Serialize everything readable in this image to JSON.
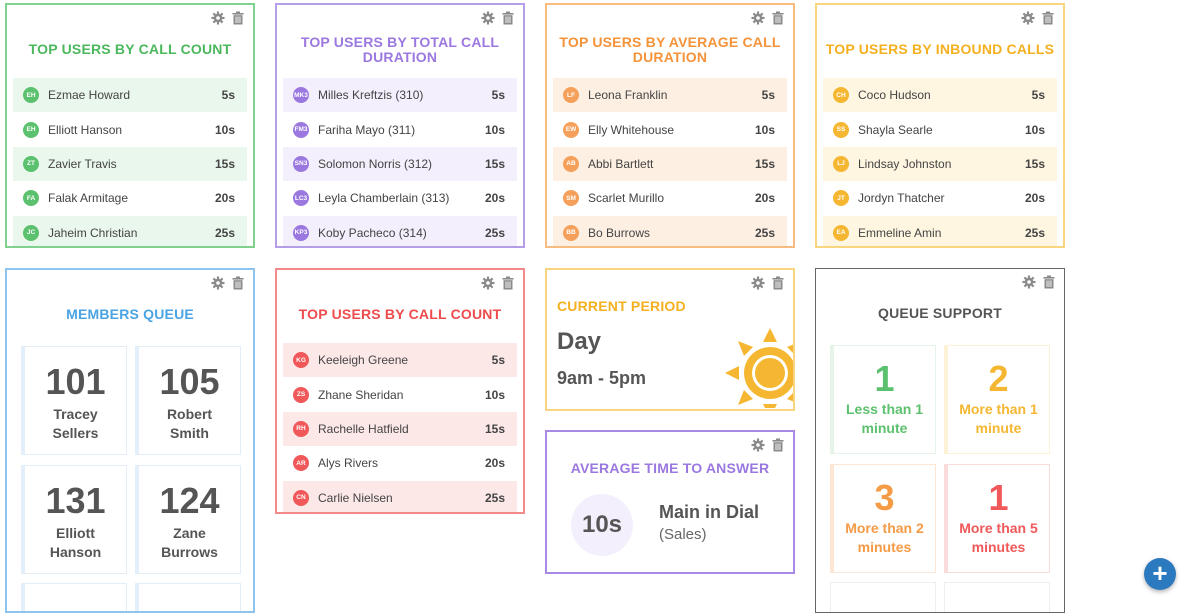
{
  "widgets": {
    "call_count": {
      "title": "TOP USERS BY CALL COUNT",
      "rows": [
        {
          "initials": "EH",
          "name": "Ezmae Howard",
          "duration": "5s"
        },
        {
          "initials": "EH",
          "name": "Elliott Hanson",
          "duration": "10s"
        },
        {
          "initials": "ZT",
          "name": "Zavier Travis",
          "duration": "15s"
        },
        {
          "initials": "FA",
          "name": "Falak Armitage",
          "duration": "20s"
        },
        {
          "initials": "JC",
          "name": "Jaheim Christian",
          "duration": "25s"
        }
      ]
    },
    "total_duration": {
      "title_line1": "TOP USERS BY TOTAL CALL",
      "title_line2": "DURATION",
      "rows": [
        {
          "initials": "MK3",
          "name": "Milles Kreftzis (310)",
          "duration": "5s"
        },
        {
          "initials": "FM3",
          "name": "Fariha Mayo (311)",
          "duration": "10s"
        },
        {
          "initials": "SN3",
          "name": "Solomon Norris (312)",
          "duration": "15s"
        },
        {
          "initials": "LC3",
          "name": "Leyla Chamberlain (313)",
          "duration": "20s"
        },
        {
          "initials": "KP3",
          "name": "Koby Pacheco (314)",
          "duration": "25s"
        }
      ]
    },
    "avg_duration": {
      "title_line1": "TOP USERS BY AVERAGE CALL",
      "title_line2": "DURATION",
      "rows": [
        {
          "initials": "LF",
          "name": "Leona Franklin",
          "duration": "5s"
        },
        {
          "initials": "EW",
          "name": "Elly Whitehouse",
          "duration": "10s"
        },
        {
          "initials": "AB",
          "name": "Abbi Bartlett",
          "duration": "15s"
        },
        {
          "initials": "SM",
          "name": "Scarlet Murillo",
          "duration": "20s"
        },
        {
          "initials": "BB",
          "name": "Bo Burrows",
          "duration": "25s"
        }
      ]
    },
    "inbound": {
      "title": "TOP USERS BY INBOUND CALLS",
      "rows": [
        {
          "initials": "CH",
          "name": "Coco Hudson",
          "duration": "5s"
        },
        {
          "initials": "SS",
          "name": "Shayla Searle",
          "duration": "10s"
        },
        {
          "initials": "LJ",
          "name": "Lindsay Johnston",
          "duration": "15s"
        },
        {
          "initials": "JT",
          "name": "Jordyn Thatcher",
          "duration": "20s"
        },
        {
          "initials": "EA",
          "name": "Emmeline Amin",
          "duration": "25s"
        }
      ]
    },
    "members_queue": {
      "title": "MEMBERS QUEUE",
      "tiles": [
        {
          "number": "101",
          "first": "Tracey",
          "last": "Sellers"
        },
        {
          "number": "105",
          "first": "Robert",
          "last": "Smith"
        },
        {
          "number": "131",
          "first": "Elliott",
          "last": "Hanson"
        },
        {
          "number": "124",
          "first": "Zane",
          "last": "Burrows"
        }
      ]
    },
    "call_count_2": {
      "title": "TOP USERS BY CALL COUNT",
      "rows": [
        {
          "initials": "KG",
          "name": "Keeleigh Greene",
          "duration": "5s"
        },
        {
          "initials": "ZS",
          "name": "Zhane Sheridan",
          "duration": "10s"
        },
        {
          "initials": "RH",
          "name": "Rachelle Hatfield",
          "duration": "15s"
        },
        {
          "initials": "AR",
          "name": "Alys Rivers",
          "duration": "20s"
        },
        {
          "initials": "CN",
          "name": "Carlie Nielsen",
          "duration": "25s"
        }
      ]
    },
    "current_period": {
      "title": "CURRENT PERIOD",
      "period": "Day",
      "hours": "9am - 5pm",
      "icon": "sun-icon"
    },
    "avg_answer": {
      "title": "AVERAGE TIME TO ANSWER",
      "value": "10s",
      "queue_name": "Main in Dial",
      "queue_sub": "(Sales)"
    },
    "queue_support": {
      "title": "QUEUE SUPPORT",
      "tiles": [
        {
          "number": "1",
          "line1": "Less than 1",
          "line2": "minute"
        },
        {
          "number": "2",
          "line1": "More than 1",
          "line2": "minute"
        },
        {
          "number": "3",
          "line1": "More than 2",
          "line2": "minutes"
        },
        {
          "number": "1",
          "line1": "More than 5",
          "line2": "minutes"
        }
      ]
    }
  },
  "tools": {
    "settings_icon": "gear-icon",
    "delete_icon": "trash-icon"
  },
  "fab": {
    "icon": "plus-icon",
    "label": "+"
  },
  "colors": {
    "green": "#5cc16e",
    "purple": "#9b78e0",
    "orange": "#f59a45",
    "yellow": "#f5b731",
    "blue": "#5aa9e6",
    "red": "#f0585a",
    "dark": "#555555",
    "fab": "#2b7ac0"
  }
}
